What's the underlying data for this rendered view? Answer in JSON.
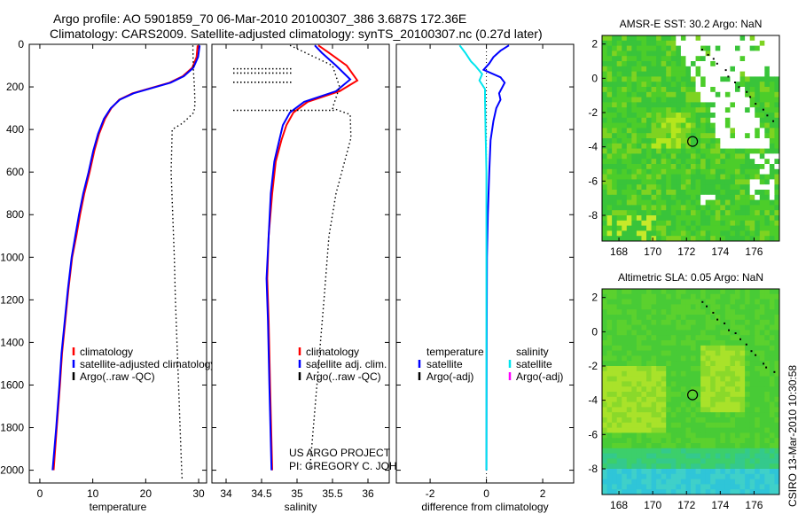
{
  "title_line1": "Argo profile: AO 5901859_70 06-Mar-2010 20100307_386 3.687S 172.36E",
  "title_line2": "Climatology: CARS2009. Satellite-adjusted climatology: synTS_20100307.nc (0.27d later)",
  "credit": "CSIRO 13-Mar-2010 10:30:58",
  "colors": {
    "climatology": "#ff0000",
    "satellite": "#0000ff",
    "argo": "#000000",
    "sat_salinity": "#00e5ee",
    "argo_salinity_adj": "#ff00ff"
  },
  "chart_data": [
    {
      "type": "line",
      "panel": "temperature",
      "xlabel": "temperature",
      "xlim": [
        -2,
        31.5
      ],
      "ylim": [
        2060,
        0
      ],
      "xticks": [
        "0",
        "10",
        "20",
        "30"
      ],
      "yticks": [
        "0",
        "200",
        "400",
        "600",
        "800",
        "1000",
        "1200",
        "1400",
        "1600",
        "1800",
        "2000"
      ],
      "legend": [
        "climatology",
        "satellite-adjusted climatology",
        "Argo(..raw -QC)"
      ],
      "series": [
        {
          "name": "climatology",
          "color": "red",
          "points": [
            [
              29.8,
              5
            ],
            [
              29.6,
              60
            ],
            [
              28.8,
              110
            ],
            [
              27,
              150
            ],
            [
              24.5,
              180
            ],
            [
              21,
              205
            ],
            [
              17.5,
              230
            ],
            [
              15,
              260
            ],
            [
              13.5,
              300
            ],
            [
              12.3,
              350
            ],
            [
              11.2,
              420
            ],
            [
              10.3,
              500
            ],
            [
              9.4,
              600
            ],
            [
              8.4,
              700
            ],
            [
              7.6,
              800
            ],
            [
              6.9,
              900
            ],
            [
              6.1,
              1000
            ],
            [
              5.4,
              1150
            ],
            [
              4.8,
              1300
            ],
            [
              4.2,
              1450
            ],
            [
              3.8,
              1600
            ],
            [
              3.2,
              1800
            ],
            [
              2.6,
              2000
            ]
          ]
        },
        {
          "name": "satellite-adjusted climatology",
          "color": "blue",
          "points": [
            [
              30.2,
              5
            ],
            [
              29.9,
              60
            ],
            [
              29,
              110
            ],
            [
              27.2,
              150
            ],
            [
              24.7,
              180
            ],
            [
              21.2,
              205
            ],
            [
              17.7,
              230
            ],
            [
              15.1,
              260
            ],
            [
              13.4,
              300
            ],
            [
              12.1,
              350
            ],
            [
              11,
              420
            ],
            [
              10.1,
              500
            ],
            [
              9.2,
              600
            ],
            [
              8.2,
              700
            ],
            [
              7.4,
              800
            ],
            [
              6.7,
              900
            ],
            [
              6,
              1000
            ],
            [
              5.3,
              1150
            ],
            [
              4.7,
              1300
            ],
            [
              4.1,
              1450
            ],
            [
              3.7,
              1600
            ],
            [
              3.1,
              1800
            ],
            [
              2.4,
              2000
            ]
          ]
        },
        {
          "name": "Argo(..raw -QC)",
          "color": "black",
          "dotted": true,
          "points": [
            [
              28.9,
              5
            ],
            [
              29,
              120
            ],
            [
              29.2,
              200
            ],
            [
              29.3,
              280
            ],
            [
              29.1,
              320
            ],
            [
              27,
              370
            ],
            [
              25,
              400
            ],
            [
              24.8,
              600
            ],
            [
              25.1,
              800
            ],
            [
              25.4,
              1000
            ],
            [
              25.6,
              1200
            ],
            [
              25.9,
              1400
            ],
            [
              26.2,
              1600
            ],
            [
              26.5,
              1800
            ],
            [
              26.8,
              2000
            ],
            [
              26.9,
              2050
            ]
          ]
        }
      ]
    },
    {
      "type": "line",
      "panel": "salinity",
      "xlabel": "salinity",
      "xlim": [
        33.8,
        36.3
      ],
      "ylim": [
        2060,
        0
      ],
      "xticks": [
        "34",
        "34.5",
        "35",
        "35.5",
        "36"
      ],
      "legend": [
        "climatology",
        "satellite adj. clim.",
        "Argo(..raw -QC)"
      ],
      "annotation": [
        "US ARGO PROJECT",
        "PI: GREGORY C. JOHNSON"
      ],
      "series": [
        {
          "name": "climatology",
          "color": "red",
          "points": [
            [
              35.3,
              5
            ],
            [
              35.45,
              40
            ],
            [
              35.7,
              100
            ],
            [
              35.85,
              170
            ],
            [
              35.6,
              220
            ],
            [
              35.15,
              270
            ],
            [
              34.95,
              320
            ],
            [
              34.85,
              380
            ],
            [
              34.78,
              450
            ],
            [
              34.7,
              550
            ],
            [
              34.65,
              700
            ],
            [
              34.6,
              900
            ],
            [
              34.58,
              1100
            ],
            [
              34.6,
              1300
            ],
            [
              34.62,
              1600
            ],
            [
              34.65,
              2000
            ]
          ]
        },
        {
          "name": "satellite adj. clim.",
          "color": "blue",
          "points": [
            [
              35.25,
              5
            ],
            [
              35.35,
              40
            ],
            [
              35.55,
              100
            ],
            [
              35.75,
              165
            ],
            [
              35.55,
              220
            ],
            [
              35.1,
              270
            ],
            [
              34.9,
              320
            ],
            [
              34.8,
              380
            ],
            [
              34.75,
              450
            ],
            [
              34.68,
              550
            ],
            [
              34.63,
              700
            ],
            [
              34.6,
              900
            ],
            [
              34.57,
              1100
            ],
            [
              34.59,
              1300
            ],
            [
              34.61,
              1600
            ],
            [
              34.64,
              2000
            ]
          ]
        },
        {
          "name": "Argo(..raw -QC)",
          "color": "black",
          "dotted": true,
          "points": [
            [
              34.9,
              5
            ],
            [
              35.5,
              100
            ],
            [
              35.6,
              200
            ],
            [
              35.5,
              300
            ],
            [
              35.75,
              330
            ],
            [
              35.76,
              440
            ],
            [
              35.55,
              700
            ],
            [
              35.45,
              900
            ],
            [
              35.38,
              1200
            ],
            [
              35.28,
              1600
            ],
            [
              35.18,
              2000
            ]
          ]
        }
      ]
    },
    {
      "type": "line",
      "panel": "difference",
      "xlabel": "difference from climatology",
      "xlim": [
        -3.2,
        3.1
      ],
      "ylim": [
        2060,
        0
      ],
      "xticks": [
        "-2",
        "0",
        "2"
      ],
      "legend": [
        "temperature",
        "satellite",
        "Argo(-adj)",
        "salinity",
        "satellite",
        "Argo(-adj)"
      ],
      "series": [
        {
          "name": "temperature satellite",
          "color": "blue",
          "points": [
            [
              0.8,
              5
            ],
            [
              0.5,
              30
            ],
            [
              0.25,
              60
            ],
            [
              0.1,
              90
            ],
            [
              -0.1,
              120
            ],
            [
              0.5,
              155
            ],
            [
              0.65,
              180
            ],
            [
              0.45,
              230
            ],
            [
              0.5,
              260
            ],
            [
              0.35,
              300
            ],
            [
              0.25,
              360
            ],
            [
              0.15,
              450
            ],
            [
              0.1,
              600
            ],
            [
              0.05,
              800
            ],
            [
              0.02,
              1000
            ],
            [
              0.01,
              1400
            ],
            [
              0.0,
              2000
            ]
          ]
        },
        {
          "name": "salinity satellite",
          "color": "cyan",
          "points": [
            [
              -0.95,
              5
            ],
            [
              -0.75,
              40
            ],
            [
              -0.55,
              80
            ],
            [
              -0.4,
              100
            ],
            [
              -0.15,
              140
            ],
            [
              -0.25,
              170
            ],
            [
              -0.05,
              210
            ],
            [
              -0.05,
              260
            ],
            [
              -0.03,
              400
            ],
            [
              0.0,
              600
            ],
            [
              0.0,
              1000
            ],
            [
              0.0,
              2000
            ]
          ]
        }
      ]
    },
    {
      "type": "heatmap",
      "panel": "sst",
      "title": "AMSR-E SST: 30.2 Argo: NaN",
      "xlim": [
        167,
        177.5
      ],
      "ylim": [
        -9.5,
        2.5
      ],
      "xticks": [
        "168",
        "170",
        "172",
        "174",
        "176"
      ],
      "yticks": [
        "2",
        "0",
        "-2",
        "-4",
        "-6",
        "-8"
      ],
      "marker": [
        172.36,
        -3.687
      ]
    },
    {
      "type": "heatmap",
      "panel": "sla",
      "title": "Altimetric SLA: 0.05 Argo: NaN",
      "xlim": [
        167,
        177.5
      ],
      "ylim": [
        -9.5,
        2.5
      ],
      "xticks": [
        "168",
        "170",
        "172",
        "174",
        "176"
      ],
      "yticks": [
        "2",
        "0",
        "-2",
        "-4",
        "-6",
        "-8"
      ],
      "marker": [
        172.36,
        -3.687
      ]
    }
  ]
}
